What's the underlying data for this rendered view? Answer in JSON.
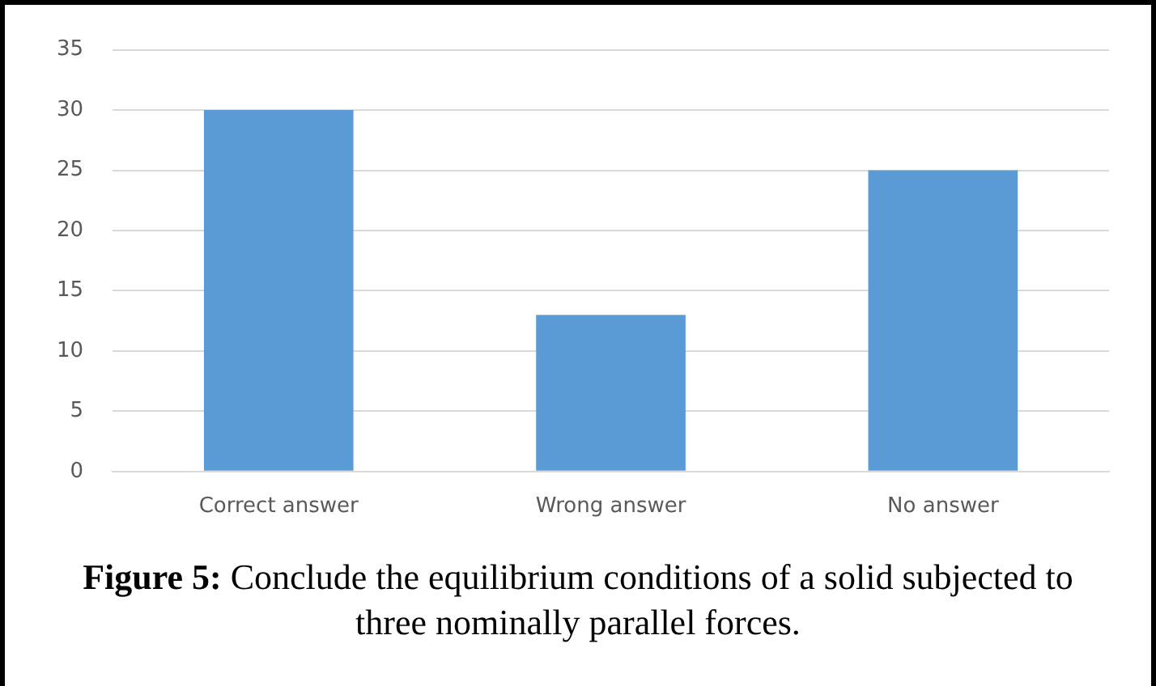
{
  "chart_data": {
    "type": "bar",
    "categories": [
      "Correct answer",
      "Wrong answer",
      "No answer"
    ],
    "values": [
      30,
      13,
      25
    ],
    "color": "#5b9bd5",
    "ylim": [
      0,
      35
    ],
    "yticks": [
      0,
      5,
      10,
      15,
      20,
      25,
      30,
      35
    ],
    "grid": "y",
    "annotations": [
      "Figure 5: Conclude the equilibrium conditions of a solid subjected to three nominally parallel forces."
    ]
  }
}
